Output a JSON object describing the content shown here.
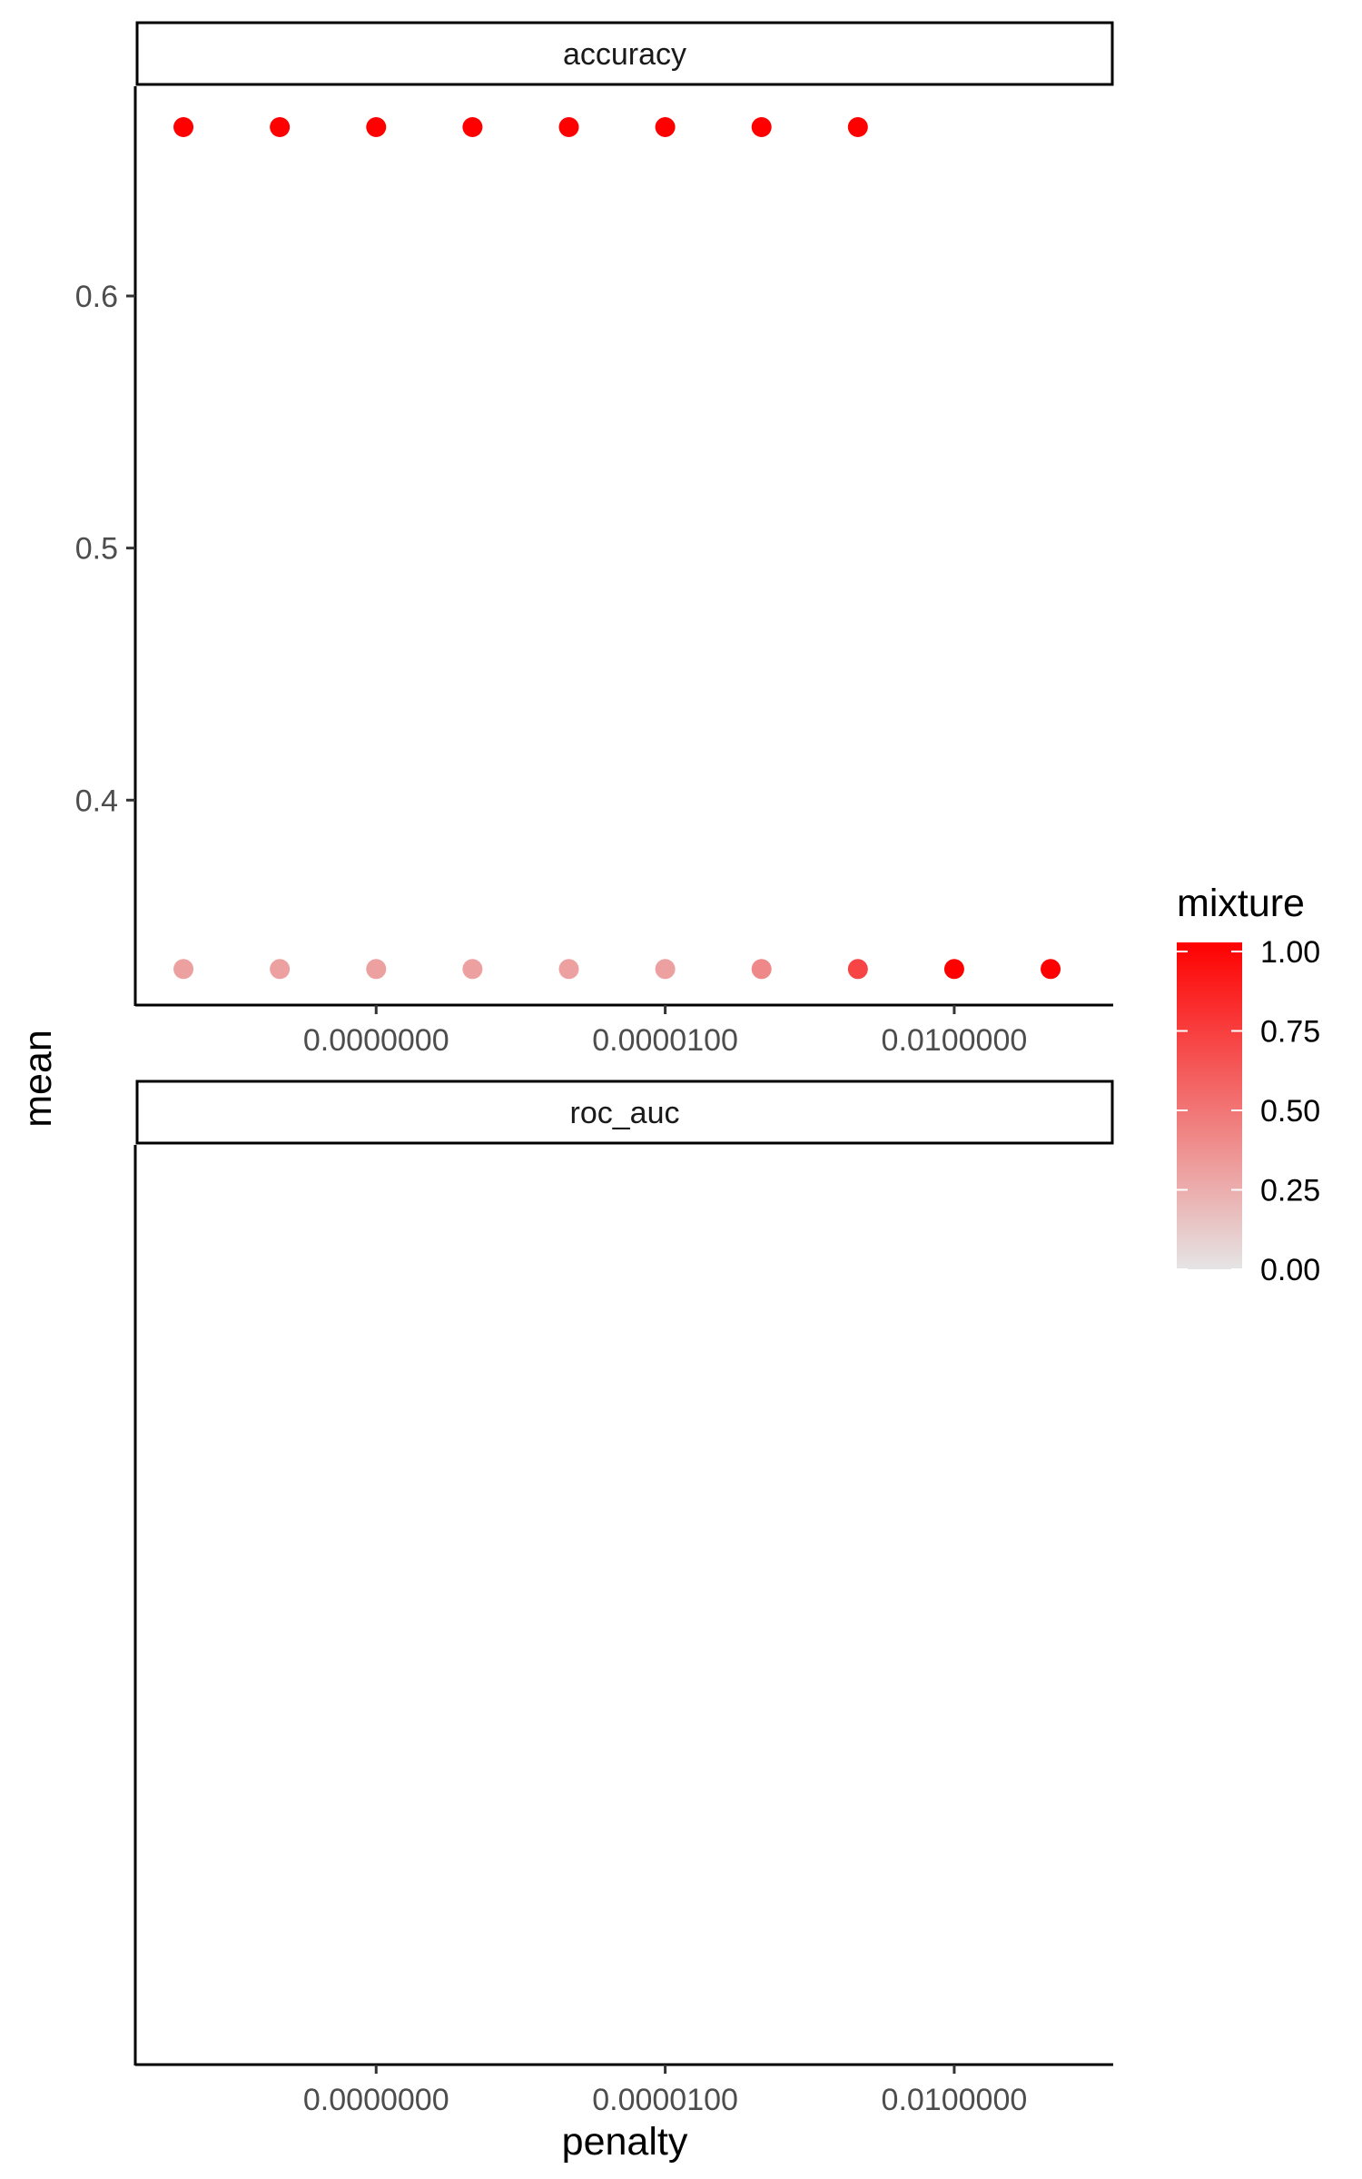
{
  "chart_data": {
    "type": "scatter",
    "xlabel": "penalty",
    "ylabel": "mean",
    "x_scale": "log10",
    "x_ticks": [
      {
        "value": 1e-08,
        "label": "0.0000000"
      },
      {
        "value": 1e-05,
        "label": "0.0000100"
      },
      {
        "value": 0.01,
        "label": "0.0100000"
      }
    ],
    "grid": false,
    "color_legend": {
      "title": "mixture",
      "placement": "right",
      "low_color": "#e5e5e5",
      "high_color": "#ff0000",
      "range": [
        0,
        1
      ],
      "ticks": [
        {
          "value": 1.0,
          "label": "1.00"
        },
        {
          "value": 0.75,
          "label": "0.75"
        },
        {
          "value": 0.5,
          "label": "0.50"
        },
        {
          "value": 0.25,
          "label": "0.25"
        },
        {
          "value": 0.0,
          "label": "0.00"
        }
      ]
    },
    "panels": [
      {
        "strip_label": "accuracy",
        "y_ticks": [
          {
            "value": 0.4,
            "label": "0.4"
          },
          {
            "value": 0.5,
            "label": "0.5"
          },
          {
            "value": 0.6,
            "label": "0.6"
          }
        ],
        "points": [
          {
            "penalty": 1e-10,
            "mean": 0.667,
            "mixture": 1.0
          },
          {
            "penalty": 1e-09,
            "mean": 0.667,
            "mixture": 1.0
          },
          {
            "penalty": 1e-08,
            "mean": 0.667,
            "mixture": 1.0
          },
          {
            "penalty": 1e-07,
            "mean": 0.667,
            "mixture": 1.0
          },
          {
            "penalty": 1e-06,
            "mean": 0.667,
            "mixture": 1.0
          },
          {
            "penalty": 1e-05,
            "mean": 0.667,
            "mixture": 1.0
          },
          {
            "penalty": 0.0001,
            "mean": 0.667,
            "mixture": 1.0
          },
          {
            "penalty": 0.001,
            "mean": 0.667,
            "mixture": 1.0
          },
          {
            "penalty": 1e-10,
            "mean": 0.333,
            "mixture": 0.3
          },
          {
            "penalty": 1e-09,
            "mean": 0.333,
            "mixture": 0.3
          },
          {
            "penalty": 1e-08,
            "mean": 0.333,
            "mixture": 0.3
          },
          {
            "penalty": 1e-07,
            "mean": 0.333,
            "mixture": 0.3
          },
          {
            "penalty": 1e-06,
            "mean": 0.333,
            "mixture": 0.3
          },
          {
            "penalty": 1e-05,
            "mean": 0.333,
            "mixture": 0.3
          },
          {
            "penalty": 0.0001,
            "mean": 0.333,
            "mixture": 0.4
          },
          {
            "penalty": 0.001,
            "mean": 0.333,
            "mixture": 0.7
          },
          {
            "penalty": 0.01,
            "mean": 0.333,
            "mixture": 1.0
          },
          {
            "penalty": 0.1,
            "mean": 0.333,
            "mixture": 1.0
          }
        ]
      },
      {
        "strip_label": "roc_auc",
        "y_ticks": [],
        "points": []
      }
    ]
  }
}
